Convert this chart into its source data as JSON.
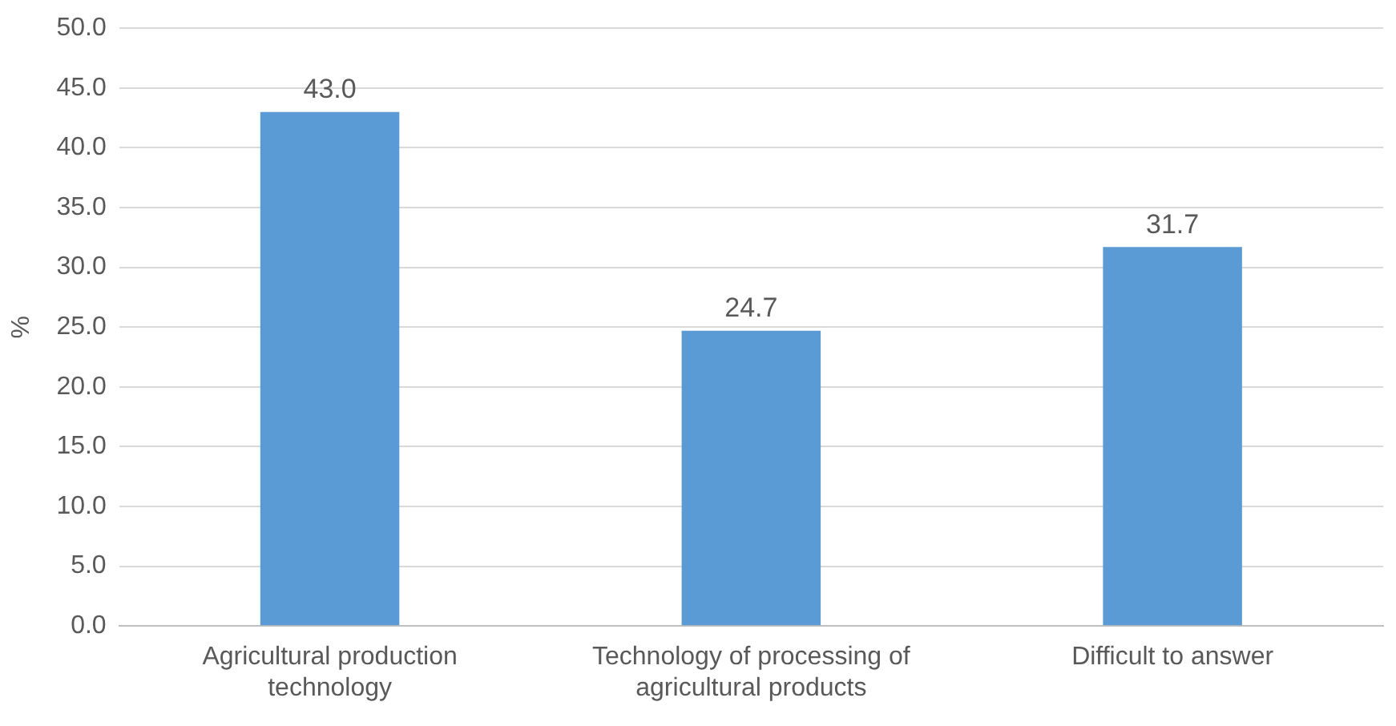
{
  "chart_data": {
    "type": "bar",
    "ylabel": "%",
    "categories": [
      "Agricultural production technology",
      "Technology of processing of agricultural products",
      "Difficult to answer"
    ],
    "values": [
      43.0,
      24.7,
      31.7
    ],
    "color": "#5b9bd5",
    "value_labels": [
      "43.0",
      "24.7",
      "31.7"
    ],
    "ylim": [
      0,
      50
    ],
    "yticks": [
      {
        "value": 0,
        "label": "0.0"
      },
      {
        "value": 5,
        "label": "5.0"
      },
      {
        "value": 10,
        "label": "10.0"
      },
      {
        "value": 15,
        "label": "15.0"
      },
      {
        "value": 20,
        "label": "20.0"
      },
      {
        "value": 25,
        "label": "25.0"
      },
      {
        "value": 30,
        "label": "30.0"
      },
      {
        "value": 35,
        "label": "35.0"
      },
      {
        "value": 40,
        "label": "40.0"
      },
      {
        "value": 45,
        "label": "45.0"
      },
      {
        "value": 50,
        "label": "50.0"
      }
    ],
    "grid": "y",
    "legend": false
  }
}
